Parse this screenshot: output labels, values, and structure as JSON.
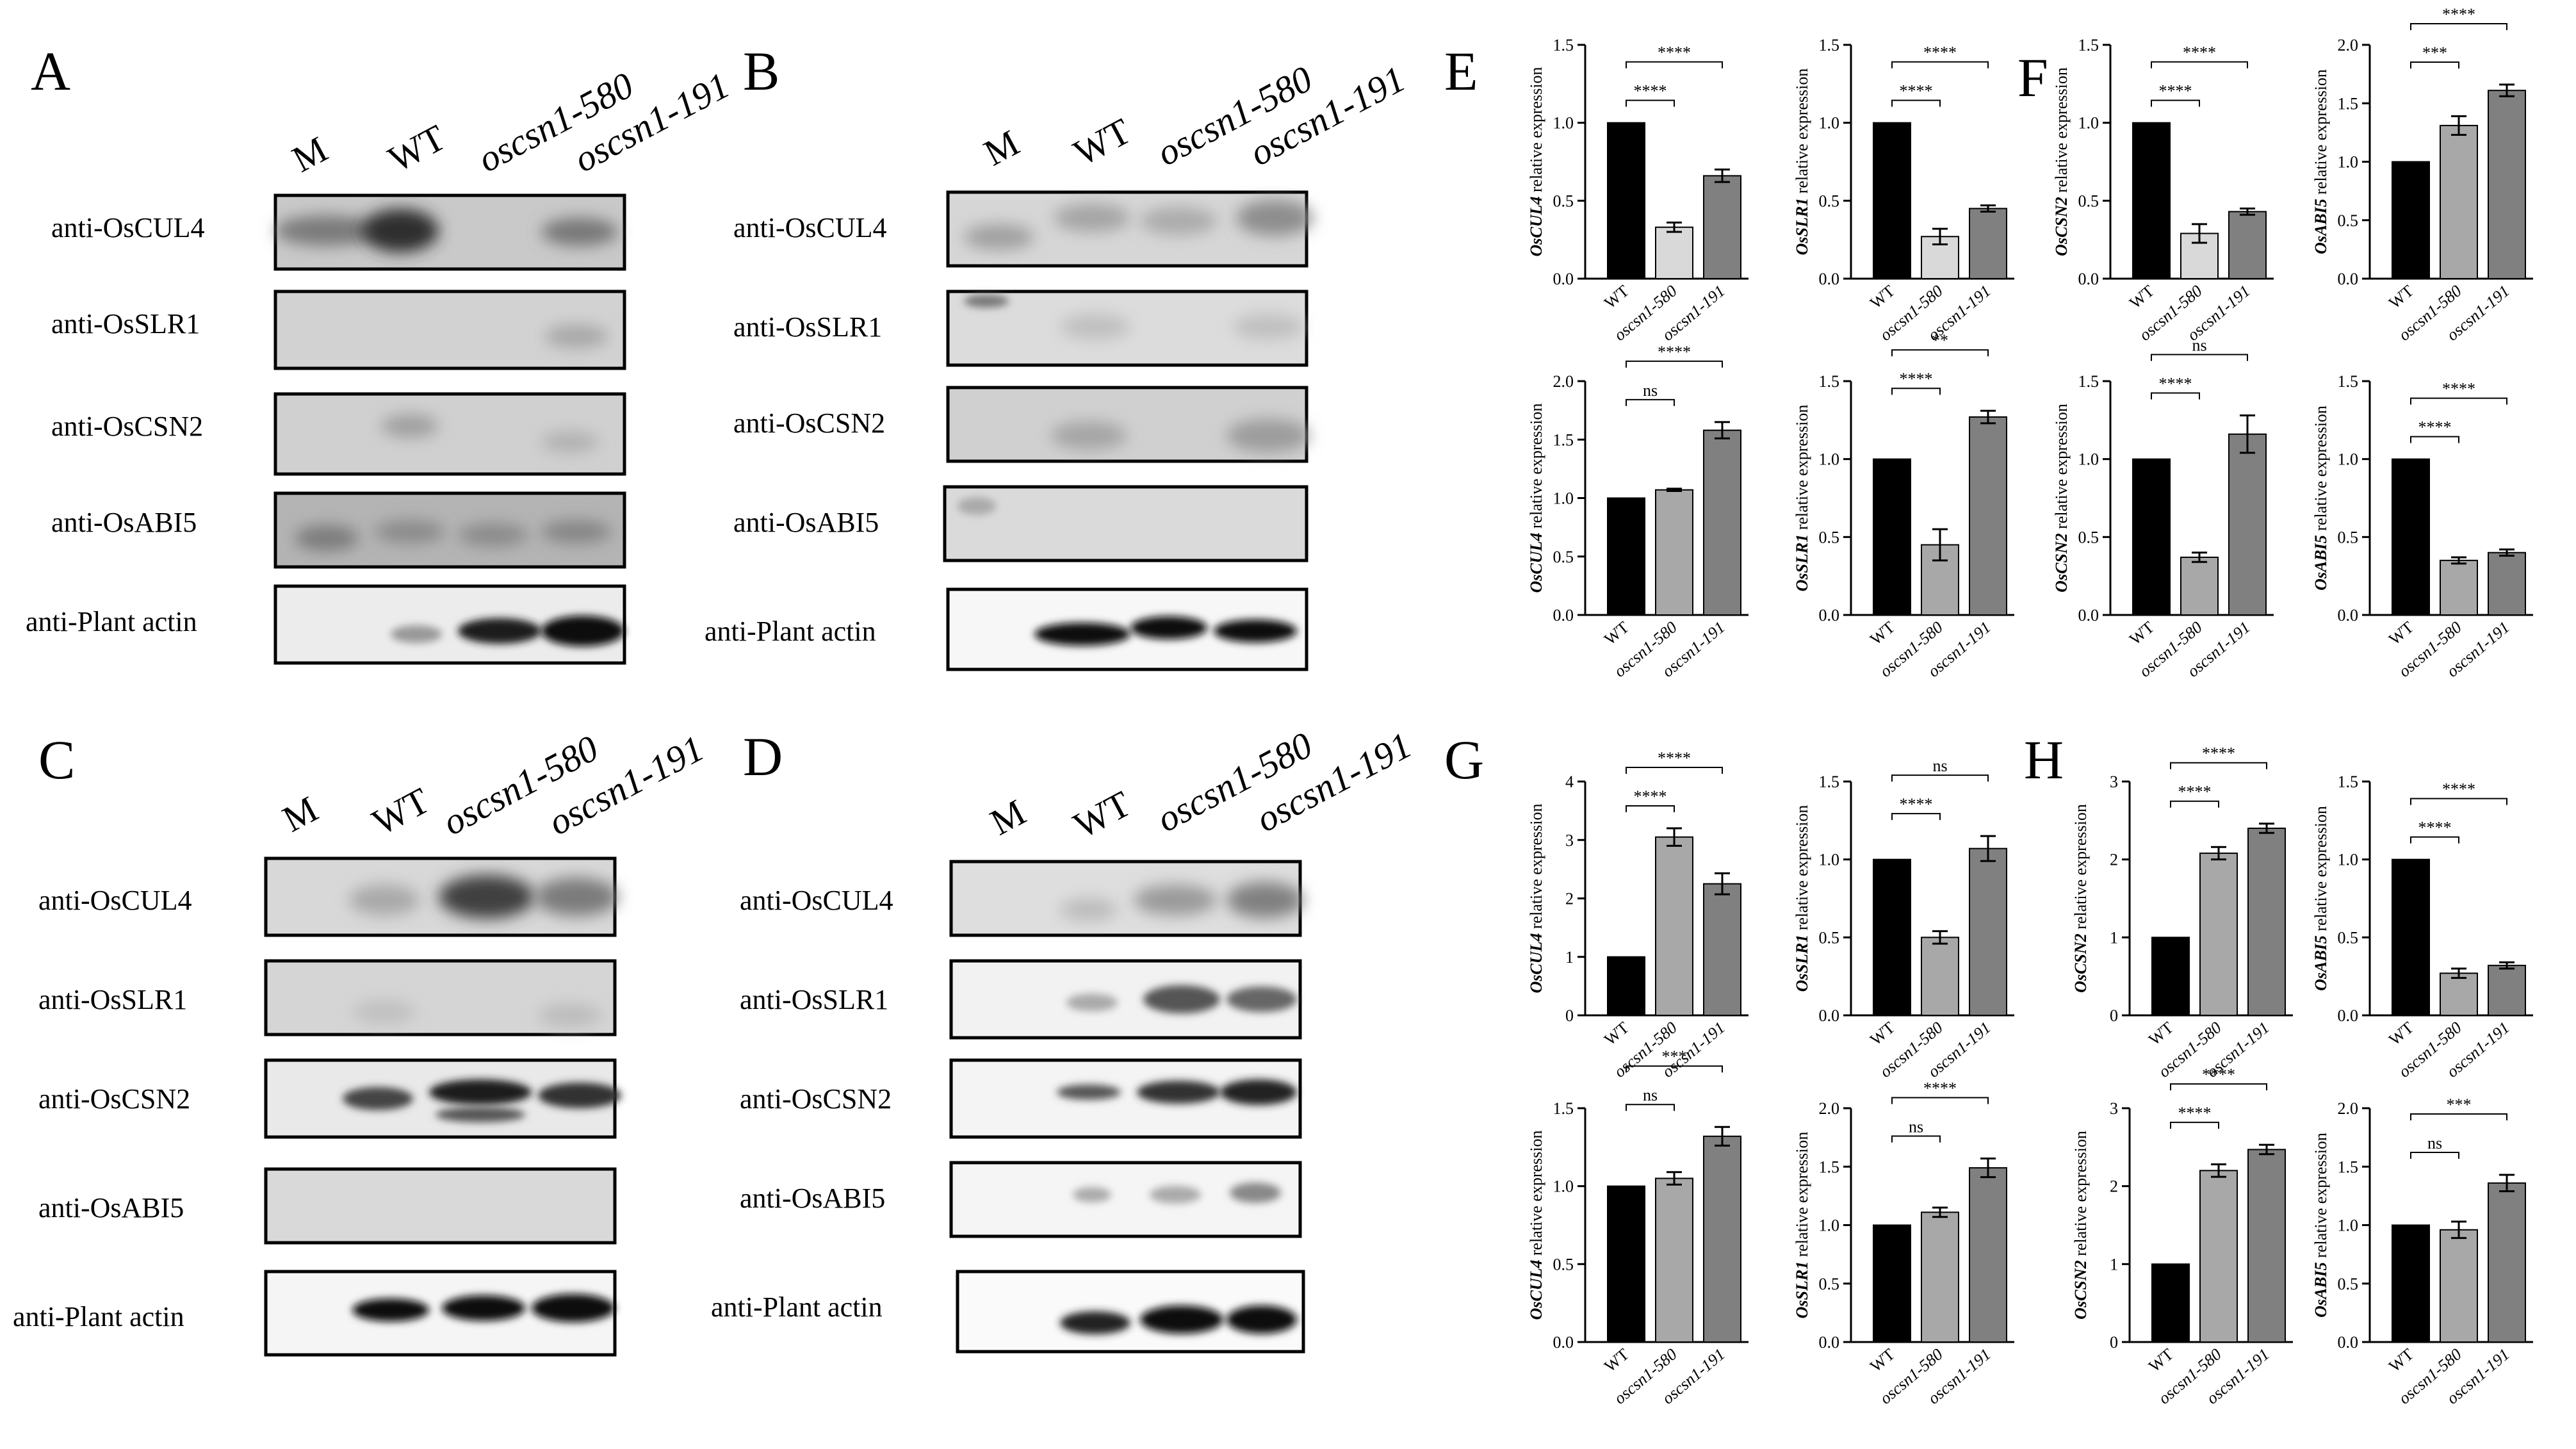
{
  "blot_panels": [
    {
      "letter": "A",
      "lanes": [
        "M",
        "WT",
        "oscsn1-580",
        "oscsn1-191"
      ],
      "rows": [
        "anti-OsCUL4",
        "anti-OsSLR1",
        "anti-OsCSN2",
        "anti-OsABI5",
        "anti-Plant actin"
      ]
    },
    {
      "letter": "B",
      "lanes": [
        "M",
        "WT",
        "oscsn1-580",
        "oscsn1-191"
      ],
      "rows": [
        "anti-OsCUL4",
        "anti-OsSLR1",
        "anti-OsCSN2",
        "anti-OsABI5",
        "anti-Plant actin"
      ]
    },
    {
      "letter": "C",
      "lanes": [
        "M",
        "WT",
        "oscsn1-580",
        "oscsn1-191"
      ],
      "rows": [
        "anti-OsCUL4",
        "anti-OsSLR1",
        "anti-OsCSN2",
        "anti-OsABI5",
        "anti-Plant actin"
      ]
    },
    {
      "letter": "D",
      "lanes": [
        "M",
        "WT",
        "oscsn1-580",
        "oscsn1-191"
      ],
      "rows": [
        "anti-OsCUL4",
        "anti-OsSLR1",
        "anti-OsCSN2",
        "anti-OsABI5",
        "anti-Plant actin"
      ]
    }
  ],
  "chart_panels": [
    {
      "letter": "E"
    },
    {
      "letter": "F"
    },
    {
      "letter": "G"
    },
    {
      "letter": "H"
    }
  ],
  "chart_data": [
    {
      "panel": "E",
      "type": "bar",
      "gene": "OsCUL4",
      "ylabel_suffix": " relative expression",
      "categories": [
        "WT",
        "oscsn1-580",
        "oscsn1-191"
      ],
      "values": [
        1.0,
        0.33,
        0.66
      ],
      "errors": [
        0,
        0.03,
        0.04
      ],
      "ylim": [
        0,
        1.5
      ],
      "yticks": [
        "0.0",
        "0.5",
        "1.0",
        "1.5"
      ],
      "comparisons": [
        {
          "to": 1,
          "label": "****"
        },
        {
          "to": 2,
          "label": "****"
        }
      ],
      "bar_colors": [
        "#000000",
        "#d9d9d9",
        "#808080"
      ]
    },
    {
      "panel": "E",
      "type": "bar",
      "gene": "OsSLR1",
      "ylabel_suffix": " relative expression",
      "categories": [
        "WT",
        "oscsn1-580",
        "oscsn1-191"
      ],
      "values": [
        1.0,
        0.27,
        0.45
      ],
      "errors": [
        0,
        0.05,
        0.02
      ],
      "ylim": [
        0,
        1.5
      ],
      "yticks": [
        "0.0",
        "0.5",
        "1.0",
        "1.5"
      ],
      "comparisons": [
        {
          "to": 1,
          "label": "****"
        },
        {
          "to": 2,
          "label": "****"
        }
      ],
      "bar_colors": [
        "#000000",
        "#d9d9d9",
        "#808080"
      ]
    },
    {
      "panel": "E",
      "type": "bar",
      "gene": "OsCSN2",
      "ylabel_suffix": " relative expression",
      "categories": [
        "WT",
        "oscsn1-580",
        "oscsn1-191"
      ],
      "values": [
        1.0,
        0.29,
        0.43
      ],
      "errors": [
        0,
        0.06,
        0.02
      ],
      "ylim": [
        0,
        1.5
      ],
      "yticks": [
        "0.0",
        "0.5",
        "1.0",
        "1.5"
      ],
      "comparisons": [
        {
          "to": 1,
          "label": "****"
        },
        {
          "to": 2,
          "label": "****"
        }
      ],
      "bar_colors": [
        "#000000",
        "#d9d9d9",
        "#808080"
      ]
    },
    {
      "panel": "E",
      "type": "bar",
      "gene": "OsABI5",
      "ylabel_suffix": " relative expression",
      "categories": [
        "WT",
        "oscsn1-580",
        "oscsn1-191"
      ],
      "values": [
        1.0,
        1.31,
        1.61
      ],
      "errors": [
        0,
        0.08,
        0.05
      ],
      "ylim": [
        0,
        2.0
      ],
      "yticks": [
        "0.0",
        "0.5",
        "1.0",
        "1.5",
        "2.0"
      ],
      "comparisons": [
        {
          "to": 1,
          "label": "***"
        },
        {
          "to": 2,
          "label": "****"
        }
      ],
      "bar_colors": [
        "#000000",
        "#a8a8a8",
        "#808080"
      ]
    },
    {
      "panel": "F",
      "type": "bar",
      "gene": "OsCUL4",
      "ylabel_suffix": " relative expression",
      "categories": [
        "WT",
        "oscsn1-580",
        "oscsn1-191"
      ],
      "values": [
        1.0,
        1.07,
        1.58
      ],
      "errors": [
        0,
        0.01,
        0.07
      ],
      "ylim": [
        0,
        2.0
      ],
      "yticks": [
        "0.0",
        "0.5",
        "1.0",
        "1.5",
        "2.0"
      ],
      "comparisons": [
        {
          "to": 1,
          "label": "ns"
        },
        {
          "to": 2,
          "label": "****"
        }
      ],
      "bar_colors": [
        "#000000",
        "#a8a8a8",
        "#808080"
      ]
    },
    {
      "panel": "F",
      "type": "bar",
      "gene": "OsSLR1",
      "ylabel_suffix": " relative expression",
      "categories": [
        "WT",
        "oscsn1-580",
        "oscsn1-191"
      ],
      "values": [
        1.0,
        0.45,
        1.27
      ],
      "errors": [
        0,
        0.1,
        0.04
      ],
      "ylim": [
        0,
        1.5
      ],
      "yticks": [
        "0.0",
        "0.5",
        "1.0",
        "1.5"
      ],
      "comparisons": [
        {
          "to": 1,
          "label": "****"
        },
        {
          "to": 2,
          "label": "**"
        }
      ],
      "bar_colors": [
        "#000000",
        "#a8a8a8",
        "#808080"
      ]
    },
    {
      "panel": "F",
      "type": "bar",
      "gene": "OsCSN2",
      "ylabel_suffix": " relative expression",
      "categories": [
        "WT",
        "oscsn1-580",
        "oscsn1-191"
      ],
      "values": [
        1.0,
        0.37,
        1.16
      ],
      "errors": [
        0,
        0.03,
        0.12
      ],
      "ylim": [
        0,
        1.5
      ],
      "yticks": [
        "0.0",
        "0.5",
        "1.0",
        "1.5"
      ],
      "comparisons": [
        {
          "to": 1,
          "label": "****"
        },
        {
          "to": 2,
          "label": "ns"
        }
      ],
      "bar_colors": [
        "#000000",
        "#a8a8a8",
        "#808080"
      ]
    },
    {
      "panel": "F",
      "type": "bar",
      "gene": "OsABI5",
      "ylabel_suffix": " relative expression",
      "categories": [
        "WT",
        "oscsn1-580",
        "oscsn1-191"
      ],
      "values": [
        1.0,
        0.35,
        0.4
      ],
      "errors": [
        0,
        0.02,
        0.02
      ],
      "ylim": [
        0,
        1.5
      ],
      "yticks": [
        "0.0",
        "0.5",
        "1.0",
        "1.5"
      ],
      "comparisons": [
        {
          "to": 1,
          "label": "****"
        },
        {
          "to": 2,
          "label": "****"
        }
      ],
      "bar_colors": [
        "#000000",
        "#a8a8a8",
        "#808080"
      ]
    },
    {
      "panel": "G",
      "type": "bar",
      "gene": "OsCUL4",
      "ylabel_suffix": " relative expression",
      "categories": [
        "WT",
        "oscsn1-580",
        "oscsn1-191"
      ],
      "values": [
        1.0,
        3.05,
        2.25
      ],
      "errors": [
        0,
        0.15,
        0.18
      ],
      "ylim": [
        0,
        4
      ],
      "yticks": [
        "0",
        "1",
        "2",
        "3",
        "4"
      ],
      "comparisons": [
        {
          "to": 1,
          "label": "****"
        },
        {
          "to": 2,
          "label": "****"
        }
      ],
      "bar_colors": [
        "#000000",
        "#a8a8a8",
        "#808080"
      ]
    },
    {
      "panel": "G",
      "type": "bar",
      "gene": "OsSLR1",
      "ylabel_suffix": " relative expression",
      "categories": [
        "WT",
        "oscsn1-580",
        "oscsn1-191"
      ],
      "values": [
        1.0,
        0.5,
        1.07
      ],
      "errors": [
        0,
        0.04,
        0.08
      ],
      "ylim": [
        0,
        1.5
      ],
      "yticks": [
        "0.0",
        "0.5",
        "1.0",
        "1.5"
      ],
      "comparisons": [
        {
          "to": 1,
          "label": "****"
        },
        {
          "to": 2,
          "label": "ns"
        }
      ],
      "bar_colors": [
        "#000000",
        "#a8a8a8",
        "#808080"
      ]
    },
    {
      "panel": "G",
      "type": "bar",
      "gene": "OsCSN2",
      "ylabel_suffix": " relative expression",
      "categories": [
        "WT",
        "oscsn1-580",
        "oscsn1-191"
      ],
      "values": [
        1.0,
        2.08,
        2.4
      ],
      "errors": [
        0,
        0.08,
        0.06
      ],
      "ylim": [
        0,
        3
      ],
      "yticks": [
        "0",
        "1",
        "2",
        "3"
      ],
      "comparisons": [
        {
          "to": 1,
          "label": "****"
        },
        {
          "to": 2,
          "label": "****"
        }
      ],
      "bar_colors": [
        "#000000",
        "#a8a8a8",
        "#808080"
      ]
    },
    {
      "panel": "G",
      "type": "bar",
      "gene": "OsABI5",
      "ylabel_suffix": " relative expression",
      "categories": [
        "WT",
        "oscsn1-580",
        "oscsn1-191"
      ],
      "values": [
        1.0,
        0.27,
        0.32
      ],
      "errors": [
        0,
        0.03,
        0.02
      ],
      "ylim": [
        0,
        1.5
      ],
      "yticks": [
        "0.0",
        "0.5",
        "1.0",
        "1.5"
      ],
      "comparisons": [
        {
          "to": 1,
          "label": "****"
        },
        {
          "to": 2,
          "label": "****"
        }
      ],
      "bar_colors": [
        "#000000",
        "#a8a8a8",
        "#808080"
      ]
    },
    {
      "panel": "H",
      "type": "bar",
      "gene": "OsCUL4",
      "ylabel_suffix": " relative expression",
      "categories": [
        "WT",
        "oscsn1-580",
        "oscsn1-191"
      ],
      "values": [
        1.0,
        1.05,
        1.32
      ],
      "errors": [
        0,
        0.04,
        0.06
      ],
      "ylim": [
        0,
        1.5
      ],
      "yticks": [
        "0.0",
        "0.5",
        "1.0",
        "1.5"
      ],
      "comparisons": [
        {
          "to": 1,
          "label": "ns"
        },
        {
          "to": 2,
          "label": "***"
        }
      ],
      "bar_colors": [
        "#000000",
        "#a8a8a8",
        "#808080"
      ]
    },
    {
      "panel": "H",
      "type": "bar",
      "gene": "OsSLR1",
      "ylabel_suffix": " relative expression",
      "categories": [
        "WT",
        "oscsn1-580",
        "oscsn1-191"
      ],
      "values": [
        1.0,
        1.11,
        1.49
      ],
      "errors": [
        0,
        0.04,
        0.08
      ],
      "ylim": [
        0,
        2.0
      ],
      "yticks": [
        "0.0",
        "0.5",
        "1.0",
        "1.5",
        "2.0"
      ],
      "comparisons": [
        {
          "to": 1,
          "label": "ns"
        },
        {
          "to": 2,
          "label": "****"
        }
      ],
      "bar_colors": [
        "#000000",
        "#a8a8a8",
        "#808080"
      ]
    },
    {
      "panel": "H",
      "type": "bar",
      "gene": "OsCSN2",
      "ylabel_suffix": " relative expression",
      "categories": [
        "WT",
        "oscsn1-580",
        "oscsn1-191"
      ],
      "values": [
        1.0,
        2.2,
        2.47
      ],
      "errors": [
        0,
        0.08,
        0.06
      ],
      "ylim": [
        0,
        3
      ],
      "yticks": [
        "0",
        "1",
        "2",
        "3"
      ],
      "comparisons": [
        {
          "to": 1,
          "label": "****"
        },
        {
          "to": 2,
          "label": "****"
        }
      ],
      "bar_colors": [
        "#000000",
        "#a8a8a8",
        "#808080"
      ]
    },
    {
      "panel": "H",
      "type": "bar",
      "gene": "OsABI5",
      "ylabel_suffix": " relative expression",
      "categories": [
        "WT",
        "oscsn1-580",
        "oscsn1-191"
      ],
      "values": [
        1.0,
        0.96,
        1.36
      ],
      "errors": [
        0,
        0.07,
        0.07
      ],
      "ylim": [
        0,
        2.0
      ],
      "yticks": [
        "0.0",
        "0.5",
        "1.0",
        "1.5",
        "2.0"
      ],
      "comparisons": [
        {
          "to": 1,
          "label": "ns"
        },
        {
          "to": 2,
          "label": "***"
        }
      ],
      "bar_colors": [
        "#000000",
        "#a8a8a8",
        "#808080"
      ]
    }
  ]
}
